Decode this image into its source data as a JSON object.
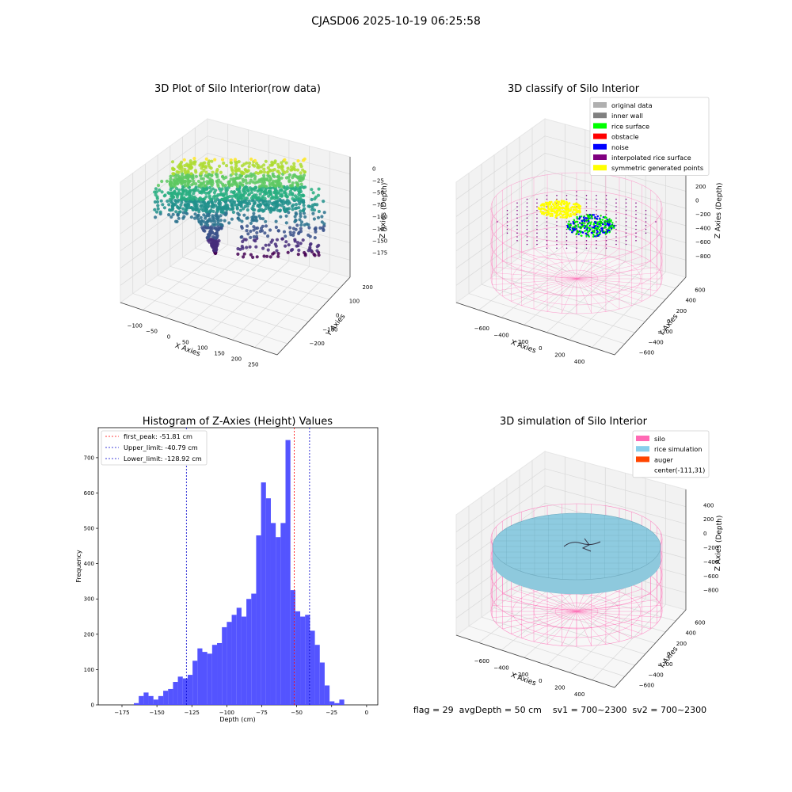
{
  "suptitle": "CJASD06 2025-10-19 06:25:58",
  "status_text": "flag = 29  avgDepth = 50 cm    sv1 = 700~2300  sv2 = 700~2300",
  "colors": {
    "hist_bar": "#4b4bff",
    "first_peak": "#ff0000",
    "limit": "#0000cc",
    "silo": "#ff69b4",
    "rice_simulation": "#87ceeb",
    "auger": "#ff4500"
  },
  "chart_data": [
    {
      "type": "scatter",
      "subtype": "3d",
      "title": "3D Plot of Silo Interior(row data)",
      "xlabel": "X Axies",
      "ylabel": "Y Axies",
      "zlabel": "Z Axies (Depth)",
      "x_ticks": [
        "−100",
        "−50",
        "0",
        "50",
        "100",
        "150",
        "200",
        "250"
      ],
      "y_ticks": [
        "200",
        "100",
        "0",
        "−100",
        "−200"
      ],
      "z_ticks": [
        "0",
        "−25",
        "−50",
        "−75",
        "−100",
        "−125",
        "−150",
        "−175"
      ],
      "xlim": [
        -120,
        270
      ],
      "ylim": [
        -250,
        230
      ],
      "zlim": [
        -185,
        5
      ],
      "colormap": "viridis (by depth)"
    },
    {
      "type": "scatter",
      "subtype": "3d",
      "title": "3D classify of Silo Interior",
      "xlabel": "X Axies",
      "ylabel": "Y Axies",
      "zlabel": "Z Axies (Depth)",
      "x_ticks": [
        "−600",
        "−400",
        "−200",
        "0",
        "200",
        "400"
      ],
      "y_ticks": [
        "600",
        "400",
        "200",
        "0",
        "−200",
        "−400",
        "−600"
      ],
      "z_ticks": [
        "400",
        "200",
        "0",
        "−200",
        "−400",
        "−600",
        "−800"
      ],
      "legend": [
        {
          "label": "original data",
          "color": "#b0b0b0"
        },
        {
          "label": "inner wall",
          "color": "#808080"
        },
        {
          "label": "rice surface",
          "color": "#00ff00"
        },
        {
          "label": "obstacle",
          "color": "#ff0000"
        },
        {
          "label": "noise",
          "color": "#0000ff"
        },
        {
          "label": "interpolated rice surface",
          "color": "#800080"
        },
        {
          "label": "symmetric generated points",
          "color": "#ffff00"
        }
      ],
      "legend_position": "top-right"
    },
    {
      "type": "bar",
      "subtype": "histogram",
      "title": "Histogram of Z-Axies (Height) Values",
      "xlabel": "Depth (cm)",
      "ylabel": "Frequency",
      "xlim": [
        -192,
        8
      ],
      "ylim": [
        0,
        785
      ],
      "x_ticks": [
        -175,
        -150,
        -125,
        -100,
        -75,
        -50,
        -25,
        0
      ],
      "y_ticks": [
        0,
        100,
        200,
        300,
        400,
        500,
        600,
        700
      ],
      "bin_start": -166.5,
      "bin_width": 3.5,
      "values": [
        5,
        25,
        35,
        25,
        15,
        25,
        40,
        45,
        65,
        80,
        75,
        85,
        125,
        160,
        150,
        145,
        170,
        175,
        220,
        235,
        255,
        275,
        250,
        300,
        315,
        480,
        630,
        585,
        515,
        475,
        515,
        750,
        325,
        265,
        250,
        255,
        210,
        170,
        120,
        55,
        10,
        5,
        15
      ],
      "lines": [
        {
          "label": "first_peak: -51.81 cm",
          "x": -51.81,
          "color": "#ff0000"
        },
        {
          "label": "Upper_limit: -40.79 cm",
          "x": -40.79,
          "color": "#0000cc"
        },
        {
          "label": "Lower_limit: -128.92 cm",
          "x": -128.92,
          "color": "#0000cc"
        }
      ],
      "legend_position": "top-left"
    },
    {
      "type": "scatter",
      "subtype": "3d",
      "title": "3D simulation of Silo Interior",
      "xlabel": "X Axies",
      "ylabel": "Y Axies",
      "zlabel": "Z Axies (Depth)",
      "x_ticks": [
        "−600",
        "−400",
        "−200",
        "0",
        "200",
        "400"
      ],
      "y_ticks": [
        "600",
        "400",
        "200",
        "0",
        "−200",
        "−400",
        "−600"
      ],
      "z_ticks": [
        "400",
        "200",
        "0",
        "−200",
        "−400",
        "−600",
        "−800"
      ],
      "legend": [
        {
          "label": "silo",
          "color": "#ff69b4"
        },
        {
          "label": "rice simulation",
          "color": "#87ceeb"
        },
        {
          "label": "auger",
          "color": "#ff4500"
        },
        {
          "label": "center(-111,31)",
          "color": ""
        }
      ],
      "legend_position": "top-right"
    }
  ]
}
